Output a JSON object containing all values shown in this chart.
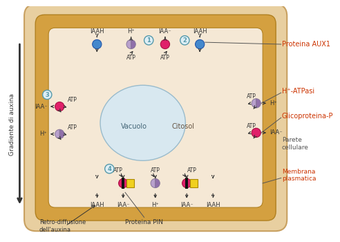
{
  "bg_color": "#ffffff",
  "cell_wall_color": "#e8cfa0",
  "plasma_membrane_color": "#d4a040",
  "cytosol_bg": "#f5e8d5",
  "vacuole_color": "#d8e8f0",
  "blue_circle": "#4488cc",
  "pink_circle": "#e0206a",
  "purple_lc": "#b8a0cc",
  "purple_dc": "#9070aa",
  "yellow_sq": "#f0d020",
  "label_color": "#cc3300",
  "right_label_color": "#cc3300",
  "arrow_color": "#333333",
  "gradient_text": "Gradiente di auxina",
  "label_aux1": "Proteina AUX1",
  "label_atpase": "H⁺-ATPasi",
  "label_glyco": "Glicoproteina-P",
  "label_parete": "Parete\ncellulare",
  "label_membrana": "Membrana\nplasmatica",
  "label_retro": "Retro-diffusione\ndell'auxina",
  "label_pin": "Proteina PIN",
  "label_vacuolo": "Vacuolo",
  "label_citosol": "Citosol",
  "num_color": "#5599aa",
  "num_bg": "#ddeef5"
}
